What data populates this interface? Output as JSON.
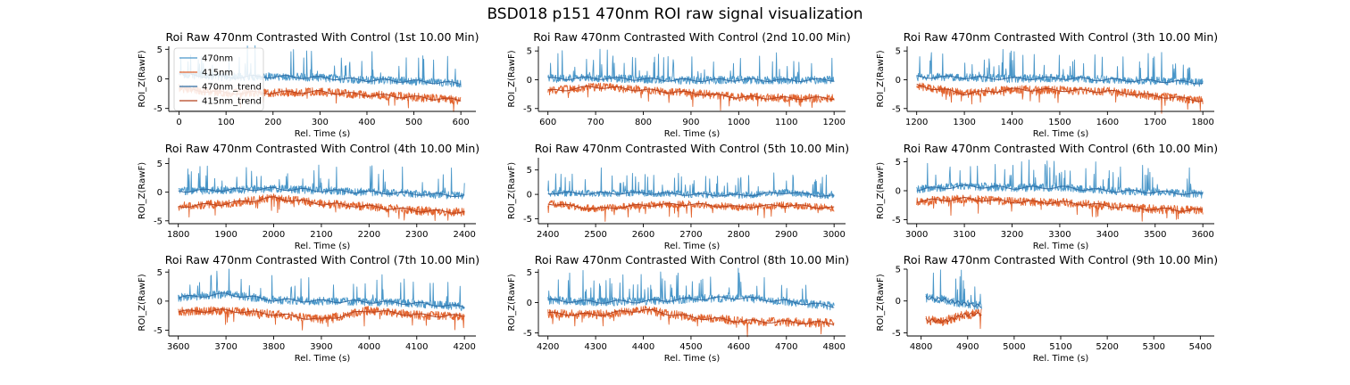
{
  "figure_title": "BSD018 p151 470nm ROI  raw signal visualization",
  "colors": {
    "470nm": "#4a97c9",
    "415nm": "#e3642e",
    "470nm_trend": "#2e6da4",
    "415nm_trend": "#b5401c"
  },
  "chart_data": [
    {
      "type": "line",
      "title": "Roi Raw 470nm Contrasted With Control (1st 10.00 Min)",
      "xlabel": "Rel. Time (s)",
      "ylabel": "ROI_Z(RawF)",
      "xlim": [
        -22,
        632
      ],
      "ylim": [
        -5.5,
        5.5
      ],
      "xticks": [
        0,
        100,
        200,
        300,
        400,
        500,
        600
      ],
      "yticks": [
        -5,
        0,
        5
      ],
      "data_range": [
        0,
        600
      ],
      "legend": {
        "location": "upper-left",
        "entries": [
          "470nm",
          "415nm",
          "470nm_trend",
          "415nm_trend"
        ]
      },
      "series": [
        {
          "name": "470nm",
          "x": [
            0,
            100,
            200,
            300,
            400,
            500,
            600
          ],
          "values": [
            0.8,
            0.3,
            0.4,
            0.2,
            -0.2,
            -0.4,
            -0.8
          ]
        },
        {
          "name": "415nm",
          "x": [
            0,
            100,
            200,
            300,
            400,
            500,
            600
          ],
          "values": [
            -1.6,
            -2.4,
            -2.3,
            -2.2,
            -2.7,
            -3.1,
            -3.6
          ]
        },
        {
          "name": "470nm_trend",
          "x": [
            0,
            100,
            200,
            300,
            400,
            500,
            600
          ],
          "values": [
            0.8,
            0.3,
            0.4,
            0.2,
            -0.2,
            -0.4,
            -0.8
          ]
        },
        {
          "name": "415nm_trend",
          "x": [
            0,
            100,
            200,
            300,
            400,
            500,
            600
          ],
          "values": [
            -1.6,
            -2.4,
            -2.3,
            -2.2,
            -2.7,
            -3.1,
            -3.6
          ]
        }
      ]
    },
    {
      "type": "line",
      "title": "Roi Raw 470nm Contrasted With Control (2nd 10.00 Min)",
      "xlabel": "Rel. Time (s)",
      "ylabel": "ROI_Z(RawF)",
      "xlim": [
        580,
        1224
      ],
      "ylim": [
        -5.5,
        5.8
      ],
      "xticks": [
        600,
        700,
        800,
        900,
        1000,
        1100,
        1200
      ],
      "yticks": [
        -5,
        0,
        5
      ],
      "data_range": [
        600,
        1200
      ],
      "series": [
        {
          "name": "470nm",
          "x": [
            600,
            700,
            800,
            900,
            1000,
            1100,
            1200
          ],
          "values": [
            0.2,
            0.3,
            0.1,
            -0.1,
            0.0,
            -0.1,
            0.0
          ]
        },
        {
          "name": "415nm",
          "x": [
            600,
            700,
            800,
            900,
            1000,
            1100,
            1200
          ],
          "values": [
            -2.0,
            -1.2,
            -1.8,
            -2.3,
            -3.0,
            -3.2,
            -3.2
          ]
        },
        {
          "name": "470nm_trend",
          "x": [
            600,
            700,
            800,
            900,
            1000,
            1100,
            1200
          ],
          "values": [
            0.2,
            0.3,
            0.1,
            -0.1,
            0.0,
            -0.1,
            0.0
          ]
        },
        {
          "name": "415nm_trend",
          "x": [
            600,
            700,
            800,
            900,
            1000,
            1100,
            1200
          ],
          "values": [
            -2.0,
            -1.2,
            -1.8,
            -2.3,
            -3.0,
            -3.2,
            -3.2
          ]
        }
      ]
    },
    {
      "type": "line",
      "title": "Roi Raw 470nm Contrasted With Control (3th 10.00 Min)",
      "xlabel": "Rel. Time (s)",
      "ylabel": "ROI_Z(RawF)",
      "xlim": [
        1180,
        1824
      ],
      "ylim": [
        -5.5,
        5.8
      ],
      "xticks": [
        1200,
        1300,
        1400,
        1500,
        1600,
        1700,
        1800
      ],
      "yticks": [
        -5,
        0,
        5
      ],
      "data_range": [
        1200,
        1800
      ],
      "series": [
        {
          "name": "470nm",
          "x": [
            1200,
            1300,
            1400,
            1500,
            1600,
            1700,
            1800
          ],
          "values": [
            0.5,
            0.4,
            0.2,
            0.3,
            0.0,
            -0.2,
            -0.5
          ]
        },
        {
          "name": "415nm",
          "x": [
            1200,
            1300,
            1400,
            1500,
            1600,
            1700,
            1800
          ],
          "values": [
            -1.0,
            -2.4,
            -1.7,
            -1.8,
            -2.0,
            -2.8,
            -3.6
          ]
        },
        {
          "name": "470nm_trend",
          "x": [
            1200,
            1300,
            1400,
            1500,
            1600,
            1700,
            1800
          ],
          "values": [
            0.5,
            0.4,
            0.2,
            0.3,
            0.0,
            -0.2,
            -0.5
          ]
        },
        {
          "name": "415nm_trend",
          "x": [
            1200,
            1300,
            1400,
            1500,
            1600,
            1700,
            1800
          ],
          "values": [
            -1.0,
            -2.4,
            -1.7,
            -1.8,
            -2.0,
            -2.8,
            -3.6
          ]
        }
      ]
    },
    {
      "type": "line",
      "title": "Roi Raw 470nm Contrasted With Control (4th 10.00 Min)",
      "xlabel": "Rel. Time (s)",
      "ylabel": "ROI_Z(RawF)",
      "xlim": [
        1780,
        2424
      ],
      "ylim": [
        -5.5,
        6.0
      ],
      "xticks": [
        1800,
        1900,
        2000,
        2100,
        2200,
        2300,
        2400
      ],
      "yticks": [
        -5,
        0,
        5
      ],
      "data_range": [
        1800,
        2400
      ],
      "series": [
        {
          "name": "470nm",
          "x": [
            1800,
            1900,
            2000,
            2100,
            2200,
            2300,
            2400
          ],
          "values": [
            0.2,
            0.4,
            0.6,
            0.3,
            0.0,
            -0.3,
            -0.6
          ]
        },
        {
          "name": "415nm",
          "x": [
            1800,
            1900,
            2000,
            2100,
            2200,
            2300,
            2400
          ],
          "values": [
            -2.5,
            -2.0,
            -1.0,
            -2.0,
            -2.5,
            -3.2,
            -3.5
          ]
        },
        {
          "name": "470nm_trend",
          "x": [
            1800,
            1900,
            2000,
            2100,
            2200,
            2300,
            2400
          ],
          "values": [
            0.2,
            0.4,
            0.6,
            0.3,
            0.0,
            -0.3,
            -0.6
          ]
        },
        {
          "name": "415nm_trend",
          "x": [
            1800,
            1900,
            2000,
            2100,
            2200,
            2300,
            2400
          ],
          "values": [
            -2.5,
            -2.0,
            -1.0,
            -2.0,
            -2.5,
            -3.2,
            -3.5
          ]
        }
      ]
    },
    {
      "type": "line",
      "title": "Roi Raw 470nm Contrasted With Control (5th 10.00 Min)",
      "xlabel": "Rel. Time (s)",
      "ylabel": "ROI_Z(RawF)",
      "xlim": [
        2380,
        3024
      ],
      "ylim": [
        -6.0,
        7.5
      ],
      "xticks": [
        2400,
        2500,
        2600,
        2700,
        2800,
        2900,
        3000
      ],
      "yticks": [
        -5,
        0,
        5
      ],
      "data_range": [
        2400,
        3000
      ],
      "series": [
        {
          "name": "470nm",
          "x": [
            2400,
            2500,
            2600,
            2700,
            2800,
            2900,
            3000
          ],
          "values": [
            0.3,
            0.2,
            0.3,
            0.0,
            -0.2,
            0.4,
            -0.4
          ]
        },
        {
          "name": "415nm",
          "x": [
            2400,
            2500,
            2600,
            2700,
            2800,
            2900,
            3000
          ],
          "values": [
            -1.8,
            -3.0,
            -2.2,
            -2.0,
            -2.6,
            -2.2,
            -2.8
          ]
        },
        {
          "name": "470nm_trend",
          "x": [
            2400,
            2500,
            2600,
            2700,
            2800,
            2900,
            3000
          ],
          "values": [
            0.3,
            0.2,
            0.3,
            0.0,
            -0.2,
            0.4,
            -0.4
          ]
        },
        {
          "name": "415nm_trend",
          "x": [
            2400,
            2500,
            2600,
            2700,
            2800,
            2900,
            3000
          ],
          "values": [
            -1.8,
            -3.0,
            -2.2,
            -2.0,
            -2.6,
            -2.2,
            -2.8
          ]
        }
      ]
    },
    {
      "type": "line",
      "title": "Roi Raw 470nm Contrasted With Control (6th 10.00 Min)",
      "xlabel": "Rel. Time (s)",
      "ylabel": "ROI_Z(RawF)",
      "xlim": [
        2980,
        3624
      ],
      "ylim": [
        -5.7,
        5.7
      ],
      "xticks": [
        3000,
        3100,
        3200,
        3300,
        3400,
        3500,
        3600
      ],
      "yticks": [
        -5,
        0,
        5
      ],
      "data_range": [
        3000,
        3600
      ],
      "series": [
        {
          "name": "470nm",
          "x": [
            3000,
            3100,
            3200,
            3300,
            3400,
            3500,
            3600
          ],
          "values": [
            0.2,
            0.8,
            0.5,
            0.6,
            0.0,
            -0.2,
            -0.6
          ]
        },
        {
          "name": "415nm",
          "x": [
            3000,
            3100,
            3200,
            3300,
            3400,
            3500,
            3600
          ],
          "values": [
            -1.8,
            -1.4,
            -1.9,
            -2.0,
            -2.6,
            -3.2,
            -3.4
          ]
        },
        {
          "name": "470nm_trend",
          "x": [
            3000,
            3100,
            3200,
            3300,
            3400,
            3500,
            3600
          ],
          "values": [
            0.2,
            0.8,
            0.5,
            0.6,
            0.0,
            -0.2,
            -0.6
          ]
        },
        {
          "name": "415nm_trend",
          "x": [
            3000,
            3100,
            3200,
            3300,
            3400,
            3500,
            3600
          ],
          "values": [
            -1.8,
            -1.4,
            -1.9,
            -2.0,
            -2.6,
            -3.2,
            -3.4
          ]
        }
      ]
    },
    {
      "type": "line",
      "title": "Roi Raw 470nm Contrasted With Control (7th 10.00 Min)",
      "xlabel": "Rel. Time (s)",
      "ylabel": "ROI_Z(RawF)",
      "xlim": [
        3580,
        4224
      ],
      "ylim": [
        -6.0,
        5.5
      ],
      "xticks": [
        3600,
        3700,
        3800,
        3900,
        4000,
        4100,
        4200
      ],
      "yticks": [
        -5,
        0,
        5
      ],
      "data_range": [
        3600,
        4200
      ],
      "series": [
        {
          "name": "470nm",
          "x": [
            3600,
            3700,
            3800,
            3900,
            4000,
            4100,
            4200
          ],
          "values": [
            0.6,
            1.2,
            0.2,
            0.0,
            -0.1,
            -0.4,
            -1.0
          ]
        },
        {
          "name": "415nm",
          "x": [
            3600,
            3700,
            3800,
            3900,
            4000,
            4100,
            4200
          ],
          "values": [
            -1.8,
            -1.6,
            -2.2,
            -3.2,
            -1.6,
            -2.4,
            -2.6
          ]
        },
        {
          "name": "470nm_trend",
          "x": [
            3600,
            3700,
            3800,
            3900,
            4000,
            4100,
            4200
          ],
          "values": [
            0.6,
            1.2,
            0.2,
            0.0,
            -0.1,
            -0.4,
            -1.0
          ]
        },
        {
          "name": "415nm_trend",
          "x": [
            3600,
            3700,
            3800,
            3900,
            4000,
            4100,
            4200
          ],
          "values": [
            -1.8,
            -1.6,
            -2.2,
            -3.2,
            -1.6,
            -2.4,
            -2.6
          ]
        }
      ]
    },
    {
      "type": "line",
      "title": "Roi Raw 470nm Contrasted With Control (8th 10.00 Min)",
      "xlabel": "Rel. Time (s)",
      "ylabel": "ROI_Z(RawF)",
      "xlim": [
        4180,
        4824
      ],
      "ylim": [
        -5.5,
        5.5
      ],
      "xticks": [
        4200,
        4300,
        4400,
        4500,
        4600,
        4700,
        4800
      ],
      "yticks": [
        -5,
        0,
        5
      ],
      "data_range": [
        4200,
        4800
      ],
      "series": [
        {
          "name": "470nm",
          "x": [
            4200,
            4300,
            4400,
            4500,
            4600,
            4700,
            4800
          ],
          "values": [
            0.4,
            0.1,
            0.2,
            0.6,
            0.8,
            0.2,
            -0.6
          ]
        },
        {
          "name": "415nm",
          "x": [
            4200,
            4300,
            4400,
            4500,
            4600,
            4700,
            4800
          ],
          "values": [
            -1.8,
            -2.0,
            -1.2,
            -2.4,
            -3.0,
            -3.2,
            -3.4
          ]
        },
        {
          "name": "470nm_trend",
          "x": [
            4200,
            4300,
            4400,
            4500,
            4600,
            4700,
            4800
          ],
          "values": [
            0.4,
            0.1,
            0.2,
            0.6,
            0.8,
            0.2,
            -0.6
          ]
        },
        {
          "name": "415nm_trend",
          "x": [
            4200,
            4300,
            4400,
            4500,
            4600,
            4700,
            4800
          ],
          "values": [
            -1.8,
            -2.0,
            -1.2,
            -2.4,
            -3.0,
            -3.2,
            -3.4
          ]
        }
      ]
    },
    {
      "type": "line",
      "title": "Roi Raw 470nm Contrasted With Control (9th 10.00 Min)",
      "xlabel": "Rel. Time (s)",
      "ylabel": "ROI_Z(RawF)",
      "xlim": [
        4770,
        5430
      ],
      "ylim": [
        -5.5,
        5.0
      ],
      "xticks": [
        4800,
        4900,
        5000,
        5100,
        5200,
        5300,
        5400
      ],
      "yticks": [
        -5,
        0,
        5
      ],
      "data_range": [
        4810,
        4930
      ],
      "series": [
        {
          "name": "470nm",
          "x": [
            4810,
            4850,
            4890,
            4930
          ],
          "values": [
            0.5,
            0.2,
            -0.4,
            -0.8
          ]
        },
        {
          "name": "415nm",
          "x": [
            4810,
            4850,
            4890,
            4930
          ],
          "values": [
            -3.0,
            -3.2,
            -2.2,
            -2.0
          ]
        },
        {
          "name": "470nm_trend",
          "x": [
            4810,
            4850,
            4890,
            4930
          ],
          "values": [
            0.5,
            0.2,
            -0.4,
            -0.8
          ]
        },
        {
          "name": "415nm_trend",
          "x": [
            4810,
            4850,
            4890,
            4930
          ],
          "values": [
            -3.0,
            -3.2,
            -2.2,
            -2.0
          ]
        }
      ]
    }
  ]
}
